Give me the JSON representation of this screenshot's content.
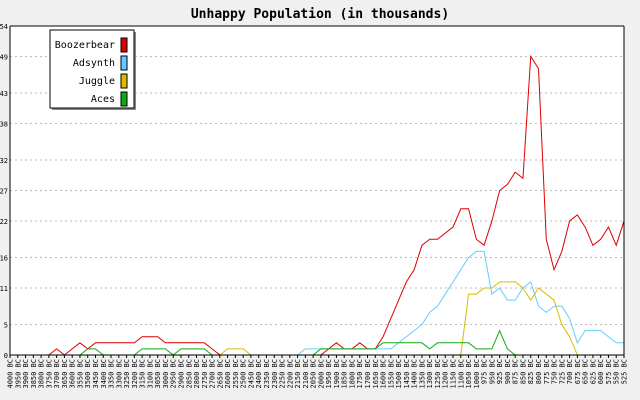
{
  "chart_data": {
    "type": "line",
    "title": "Unhappy Population (in thousands)",
    "xlabel": "",
    "ylabel": "",
    "yticks": [
      0,
      5,
      11,
      16,
      22,
      27,
      32,
      38,
      43,
      49,
      54
    ],
    "ylim": [
      0,
      54
    ],
    "grid": "horizontal dashed",
    "legend_position": "top-left",
    "x": [
      "4000 BC",
      "3950 BC",
      "3900 BC",
      "3850 BC",
      "3800 BC",
      "3750 BC",
      "3700 BC",
      "3650 BC",
      "3600 BC",
      "3550 BC",
      "3500 BC",
      "3450 BC",
      "3400 BC",
      "3350 BC",
      "3300 BC",
      "3250 BC",
      "3200 BC",
      "3150 BC",
      "3100 BC",
      "3050 BC",
      "3000 BC",
      "2950 BC",
      "2900 BC",
      "2850 BC",
      "2800 BC",
      "2750 BC",
      "2700 BC",
      "2650 BC",
      "2600 BC",
      "2550 BC",
      "2500 BC",
      "2450 BC",
      "2400 BC",
      "2350 BC",
      "2300 BC",
      "2250 BC",
      "2200 BC",
      "2150 BC",
      "2100 BC",
      "2050 BC",
      "2000 BC",
      "1950 BC",
      "1900 BC",
      "1850 BC",
      "1800 BC",
      "1750 BC",
      "1700 BC",
      "1650 BC",
      "1600 BC",
      "1550 BC",
      "1500 BC",
      "1450 BC",
      "1400 BC",
      "1350 BC",
      "1300 BC",
      "1250 BC",
      "1200 BC",
      "1150 BC",
      "1100 BC",
      "1050 BC",
      "1000 BC",
      "975 BC",
      "950 BC",
      "925 BC",
      "900 BC",
      "875 BC",
      "850 BC",
      "825 BC",
      "800 BC",
      "775 BC",
      "750 BC",
      "725 BC",
      "700 BC",
      "675 BC",
      "650 BC",
      "625 BC",
      "600 BC",
      "575 BC",
      "550 BC",
      "525 BC"
    ],
    "series": [
      {
        "name": "Boozerbear",
        "color": "#dd0000",
        "values": [
          0,
          0,
          0,
          0,
          0,
          0,
          1,
          0,
          1,
          2,
          1,
          2,
          2,
          2,
          2,
          2,
          2,
          3,
          3,
          3,
          2,
          2,
          2,
          2,
          2,
          2,
          1,
          0,
          0,
          0,
          0,
          0,
          0,
          0,
          0,
          0,
          0,
          0,
          0,
          0,
          0,
          1,
          2,
          1,
          1,
          2,
          1,
          1,
          3,
          6,
          9,
          12,
          14,
          18,
          19,
          19,
          20,
          21,
          24,
          24,
          19,
          18,
          22,
          27,
          28,
          30,
          29,
          49,
          47,
          19,
          14,
          17,
          22,
          23,
          21,
          18,
          19,
          21,
          18,
          22
        ]
      },
      {
        "name": "Adsynth",
        "color": "#66ccff",
        "values": [
          0,
          0,
          0,
          0,
          0,
          0,
          0,
          0,
          0,
          0,
          0,
          0,
          0,
          0,
          0,
          0,
          0,
          0,
          0,
          0,
          0,
          0,
          0,
          0,
          0,
          0,
          0,
          0,
          0,
          0,
          0,
          0,
          0,
          0,
          0,
          0,
          0,
          0,
          1,
          1,
          1,
          1,
          1,
          1,
          1,
          1,
          1,
          1,
          1,
          1,
          2,
          3,
          4,
          5,
          7,
          8,
          10,
          12,
          14,
          16,
          17,
          17,
          10,
          11,
          9,
          9,
          11,
          12,
          8,
          7,
          8,
          8,
          6,
          2,
          4,
          4,
          4,
          3,
          2,
          2
        ]
      },
      {
        "name": "Juggle",
        "color": "#ddbb00",
        "values": [
          0,
          0,
          0,
          0,
          0,
          0,
          0,
          0,
          0,
          0,
          0,
          0,
          0,
          0,
          0,
          0,
          0,
          0,
          0,
          0,
          0,
          0,
          0,
          0,
          0,
          0,
          0,
          0,
          1,
          1,
          1,
          0,
          0,
          0,
          0,
          0,
          0,
          0,
          0,
          0,
          0,
          0,
          0,
          0,
          0,
          0,
          0,
          0,
          0,
          0,
          0,
          0,
          0,
          0,
          0,
          0,
          0,
          0,
          0,
          10,
          10,
          11,
          11,
          12,
          12,
          12,
          11,
          9,
          11,
          10,
          9,
          5,
          3,
          0,
          0,
          0,
          0,
          0,
          0,
          0
        ]
      },
      {
        "name": "Aces",
        "color": "#11aa11",
        "values": [
          0,
          0,
          0,
          0,
          0,
          0,
          0,
          0,
          0,
          0,
          1,
          1,
          0,
          0,
          0,
          0,
          0,
          1,
          1,
          1,
          1,
          0,
          1,
          1,
          1,
          1,
          0,
          0,
          0,
          0,
          0,
          0,
          0,
          0,
          0,
          0,
          0,
          0,
          0,
          0,
          1,
          1,
          1,
          1,
          1,
          1,
          1,
          1,
          2,
          2,
          2,
          2,
          2,
          2,
          1,
          2,
          2,
          2,
          2,
          2,
          1,
          1,
          1,
          4,
          1,
          0,
          0,
          0,
          0,
          0,
          0,
          0,
          0,
          0,
          0,
          0,
          0,
          0,
          0,
          0
        ]
      }
    ]
  }
}
